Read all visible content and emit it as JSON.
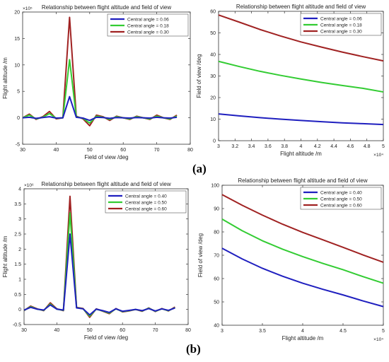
{
  "figure": {
    "label_a": "(a)",
    "label_b": "(b)"
  },
  "chart_data": [
    {
      "type": "line",
      "title": "Relationship between flight altitude and field of view",
      "xlabel": "Field of view  /deg",
      "ylabel": "Flight altitude  /m",
      "y_exponent": "×10⁵",
      "xlim": [
        30,
        80
      ],
      "ylim": [
        -5,
        20
      ],
      "xticks": [
        30,
        40,
        50,
        60,
        70,
        80
      ],
      "yticks": [
        -5,
        0,
        5,
        10,
        15,
        20
      ],
      "x_tick_labels": [
        "30",
        "40",
        "50",
        "60",
        "70",
        "80"
      ],
      "y_tick_labels": [
        "-5",
        "0",
        "5",
        "10",
        "15",
        "20"
      ],
      "legend_position": "top-right",
      "grid": false,
      "x": [
        30,
        32,
        34,
        36,
        38,
        40,
        42,
        44,
        46,
        48,
        50,
        52,
        54,
        56,
        58,
        60,
        62,
        64,
        66,
        68,
        70,
        72,
        74,
        76
      ],
      "series": [
        {
          "name": "Central angle = 0.06",
          "color": "#1f1fbf",
          "values": [
            0,
            0.1,
            -0.1,
            0.05,
            0.2,
            -0.05,
            0,
            4,
            0.1,
            -0.05,
            -0.5,
            0.1,
            0.05,
            -0.1,
            0.05,
            0,
            -0.05,
            0.05,
            0,
            -0.05,
            0.1,
            0,
            -0.05,
            0.1
          ]
        },
        {
          "name": "Central angle = 0.18",
          "color": "#33cc33",
          "values": [
            0,
            0.5,
            -0.2,
            0.1,
            0.8,
            -0.1,
            0,
            11,
            0.2,
            -0.1,
            -1.0,
            0.3,
            0.1,
            -0.3,
            0.2,
            0,
            -0.2,
            0.2,
            0,
            -0.2,
            0.3,
            0,
            -0.2,
            0.3
          ]
        },
        {
          "name": "Central angle = 0.30",
          "color": "#a02222",
          "values": [
            0,
            0.7,
            -0.3,
            0.2,
            1.2,
            -0.2,
            0,
            19,
            0.3,
            -0.2,
            -1.5,
            0.5,
            0.2,
            -0.5,
            0.3,
            0,
            -0.3,
            0.3,
            0,
            -0.3,
            0.5,
            0,
            -0.3,
            0.5
          ]
        }
      ]
    },
    {
      "type": "line",
      "title": "Relationship between flight altitude and field of view",
      "xlabel": "Flight altitude  /m",
      "ylabel": "Field of view  /deg",
      "x_exponent": "×10⁴",
      "xlim": [
        3,
        5
      ],
      "ylim": [
        0,
        60
      ],
      "xticks": [
        3,
        3.2,
        3.4,
        3.6,
        3.8,
        4,
        4.2,
        4.4,
        4.6,
        4.8,
        5
      ],
      "yticks": [
        0,
        10,
        20,
        30,
        40,
        50,
        60
      ],
      "x_tick_labels": [
        "3",
        "3.2",
        "3.4",
        "3.6",
        "3.8",
        "4",
        "4.2",
        "4.4",
        "4.6",
        "4.8",
        "5"
      ],
      "y_tick_labels": [
        "0",
        "10",
        "20",
        "30",
        "40",
        "50",
        "60"
      ],
      "legend_position": "top-right",
      "grid": false,
      "x": [
        3,
        3.25,
        3.5,
        3.75,
        4,
        4.25,
        4.5,
        4.75,
        5
      ],
      "series": [
        {
          "name": "Central angle = 0.06",
          "color": "#1f1fbf",
          "values": [
            12.4,
            11.5,
            10.7,
            10.0,
            9.4,
            8.8,
            8.3,
            7.9,
            7.5
          ]
        },
        {
          "name": "Central angle = 0.18",
          "color": "#33cc33",
          "values": [
            36.8,
            34.4,
            32.2,
            30.3,
            28.6,
            27.0,
            25.6,
            24.3,
            22.6
          ]
        },
        {
          "name": "Central angle = 0.30",
          "color": "#a02222",
          "values": [
            58.3,
            55.0,
            51.6,
            48.6,
            45.8,
            43.4,
            41.1,
            39.0,
            37.0
          ]
        }
      ]
    },
    {
      "type": "line",
      "title": "Relationship between flight altitude and field of view",
      "xlabel": "Field of view  /deg",
      "ylabel": "Flight altitude  /m",
      "y_exponent": "×10⁶",
      "xlim": [
        30,
        80
      ],
      "ylim": [
        -0.5,
        4
      ],
      "xticks": [
        30,
        40,
        50,
        60,
        70,
        80
      ],
      "yticks": [
        -0.5,
        0,
        0.5,
        1,
        1.5,
        2,
        2.5,
        3,
        3.5,
        4
      ],
      "x_tick_labels": [
        "30",
        "40",
        "50",
        "60",
        "70",
        "80"
      ],
      "y_tick_labels": [
        "-0.5",
        "0",
        "0.5",
        "1",
        "1.5",
        "2",
        "2.5",
        "3",
        "3.5",
        "4"
      ],
      "legend_position": "top-right",
      "grid": false,
      "x": [
        30,
        32,
        34,
        36,
        38,
        40,
        42,
        44,
        46,
        48,
        50,
        52,
        54,
        56,
        58,
        60,
        62,
        64,
        66,
        68,
        70,
        72,
        74,
        76
      ],
      "series": [
        {
          "name": "Central angle = 0.40",
          "color": "#1f1fbf",
          "values": [
            -0.02,
            0.07,
            0.01,
            -0.02,
            0.15,
            0.01,
            -0.02,
            2.5,
            0.05,
            0.02,
            -0.18,
            0.01,
            -0.04,
            -0.1,
            0.02,
            -0.06,
            -0.03,
            0.0,
            -0.04,
            0.03,
            -0.05,
            0.02,
            -0.03,
            0.05
          ]
        },
        {
          "name": "Central angle = 0.50",
          "color": "#33cc33",
          "values": [
            -0.03,
            0.09,
            0.01,
            -0.03,
            0.18,
            0.01,
            -0.03,
            3.2,
            0.06,
            0.02,
            -0.22,
            0.01,
            -0.05,
            -0.12,
            0.02,
            -0.07,
            -0.04,
            0.0,
            -0.05,
            0.04,
            -0.06,
            0.02,
            -0.04,
            0.06
          ]
        },
        {
          "name": "Central angle = 0.60",
          "color": "#a02222",
          "values": [
            -0.04,
            0.11,
            0.02,
            -0.04,
            0.22,
            0.02,
            -0.04,
            3.75,
            0.07,
            0.03,
            -0.26,
            0.02,
            -0.06,
            -0.14,
            0.03,
            -0.08,
            -0.05,
            0.0,
            -0.06,
            0.05,
            -0.07,
            0.03,
            -0.05,
            0.08
          ]
        }
      ]
    },
    {
      "type": "line",
      "title": "Relationship between flight altitude and field of view",
      "xlabel": "Flight altitude  /m",
      "ylabel": "Field of view  /deg",
      "x_exponent": "×10⁴",
      "xlim": [
        3,
        5
      ],
      "ylim": [
        40,
        100
      ],
      "xticks": [
        3,
        3.5,
        4,
        4.5,
        5
      ],
      "yticks": [
        40,
        50,
        60,
        70,
        80,
        90,
        100
      ],
      "x_tick_labels": [
        "3",
        "3.5",
        "4",
        "4.5",
        "5"
      ],
      "y_tick_labels": [
        "40",
        "50",
        "60",
        "70",
        "80",
        "90",
        "100"
      ],
      "legend_position": "top-right",
      "grid": false,
      "x": [
        3,
        3.25,
        3.5,
        3.75,
        4,
        4.25,
        4.5,
        4.75,
        5
      ],
      "series": [
        {
          "name": "Central angle = 0.40",
          "color": "#1f1fbf",
          "values": [
            73,
            68.4,
            64.4,
            61,
            58,
            55.4,
            53,
            50.4,
            48
          ]
        },
        {
          "name": "Central angle = 0.50",
          "color": "#33cc33",
          "values": [
            85.5,
            80.5,
            76.2,
            72.6,
            69.4,
            66.5,
            63.8,
            60.8,
            58
          ]
        },
        {
          "name": "Central angle = 0.60",
          "color": "#a02222",
          "values": [
            96,
            91.4,
            87.2,
            83.3,
            79.8,
            76.6,
            73.4,
            70.1,
            67
          ]
        }
      ]
    }
  ]
}
